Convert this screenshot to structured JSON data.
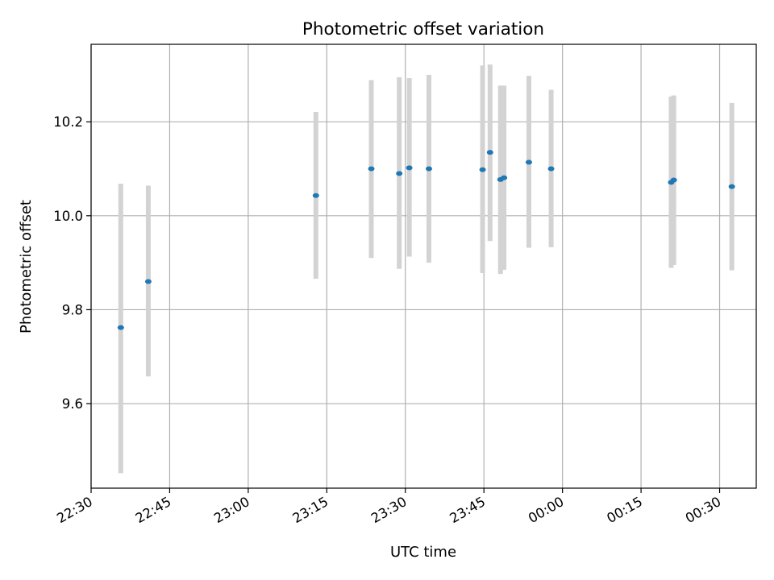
{
  "chart_data": {
    "type": "scatter",
    "title": "Photometric offset variation",
    "xlabel": "UTC time",
    "ylabel": "Photometric offset",
    "x_unit": "UTC time (HH:MM)",
    "xlim": [
      "22:30:00",
      "00:37:00"
    ],
    "ylim": [
      9.42,
      10.365
    ],
    "grid": true,
    "marker_color": "#1f77b4",
    "errorbar_color": "#d3d3d3",
    "x_ticks": [
      "22:30",
      "22:45",
      "23:00",
      "23:15",
      "23:30",
      "23:45",
      "00:00",
      "00:15",
      "00:30"
    ],
    "y_ticks": [
      "9.6",
      "9.8",
      "10.0",
      "10.2"
    ],
    "points": [
      {
        "x": "22:35:40",
        "y": 9.762,
        "yerr_low": 9.452,
        "yerr_high": 10.068
      },
      {
        "x": "22:40:55",
        "y": 9.86,
        "yerr_low": 9.658,
        "yerr_high": 10.064
      },
      {
        "x": "23:12:55",
        "y": 10.043,
        "yerr_low": 9.866,
        "yerr_high": 10.221
      },
      {
        "x": "23:23:30",
        "y": 10.1,
        "yerr_low": 9.91,
        "yerr_high": 10.289
      },
      {
        "x": "23:28:50",
        "y": 10.09,
        "yerr_low": 9.887,
        "yerr_high": 10.295
      },
      {
        "x": "23:30:45",
        "y": 10.102,
        "yerr_low": 9.913,
        "yerr_high": 10.293
      },
      {
        "x": "23:34:30",
        "y": 10.1,
        "yerr_low": 9.9,
        "yerr_high": 10.3
      },
      {
        "x": "23:44:45",
        "y": 10.098,
        "yerr_low": 9.878,
        "yerr_high": 10.32
      },
      {
        "x": "23:46:10",
        "y": 10.135,
        "yerr_low": 9.946,
        "yerr_high": 10.322
      },
      {
        "x": "23:48:10",
        "y": 10.077,
        "yerr_low": 9.876,
        "yerr_high": 10.277
      },
      {
        "x": "23:48:50",
        "y": 10.081,
        "yerr_low": 9.885,
        "yerr_high": 10.277
      },
      {
        "x": "23:53:35",
        "y": 10.114,
        "yerr_low": 9.932,
        "yerr_high": 10.298
      },
      {
        "x": "23:57:50",
        "y": 10.1,
        "yerr_low": 9.933,
        "yerr_high": 10.268
      },
      {
        "x": "00:20:45",
        "y": 10.071,
        "yerr_low": 9.889,
        "yerr_high": 10.254
      },
      {
        "x": "00:21:15",
        "y": 10.076,
        "yerr_low": 9.895,
        "yerr_high": 10.256
      },
      {
        "x": "00:32:20",
        "y": 10.062,
        "yerr_low": 9.884,
        "yerr_high": 10.24
      }
    ]
  }
}
